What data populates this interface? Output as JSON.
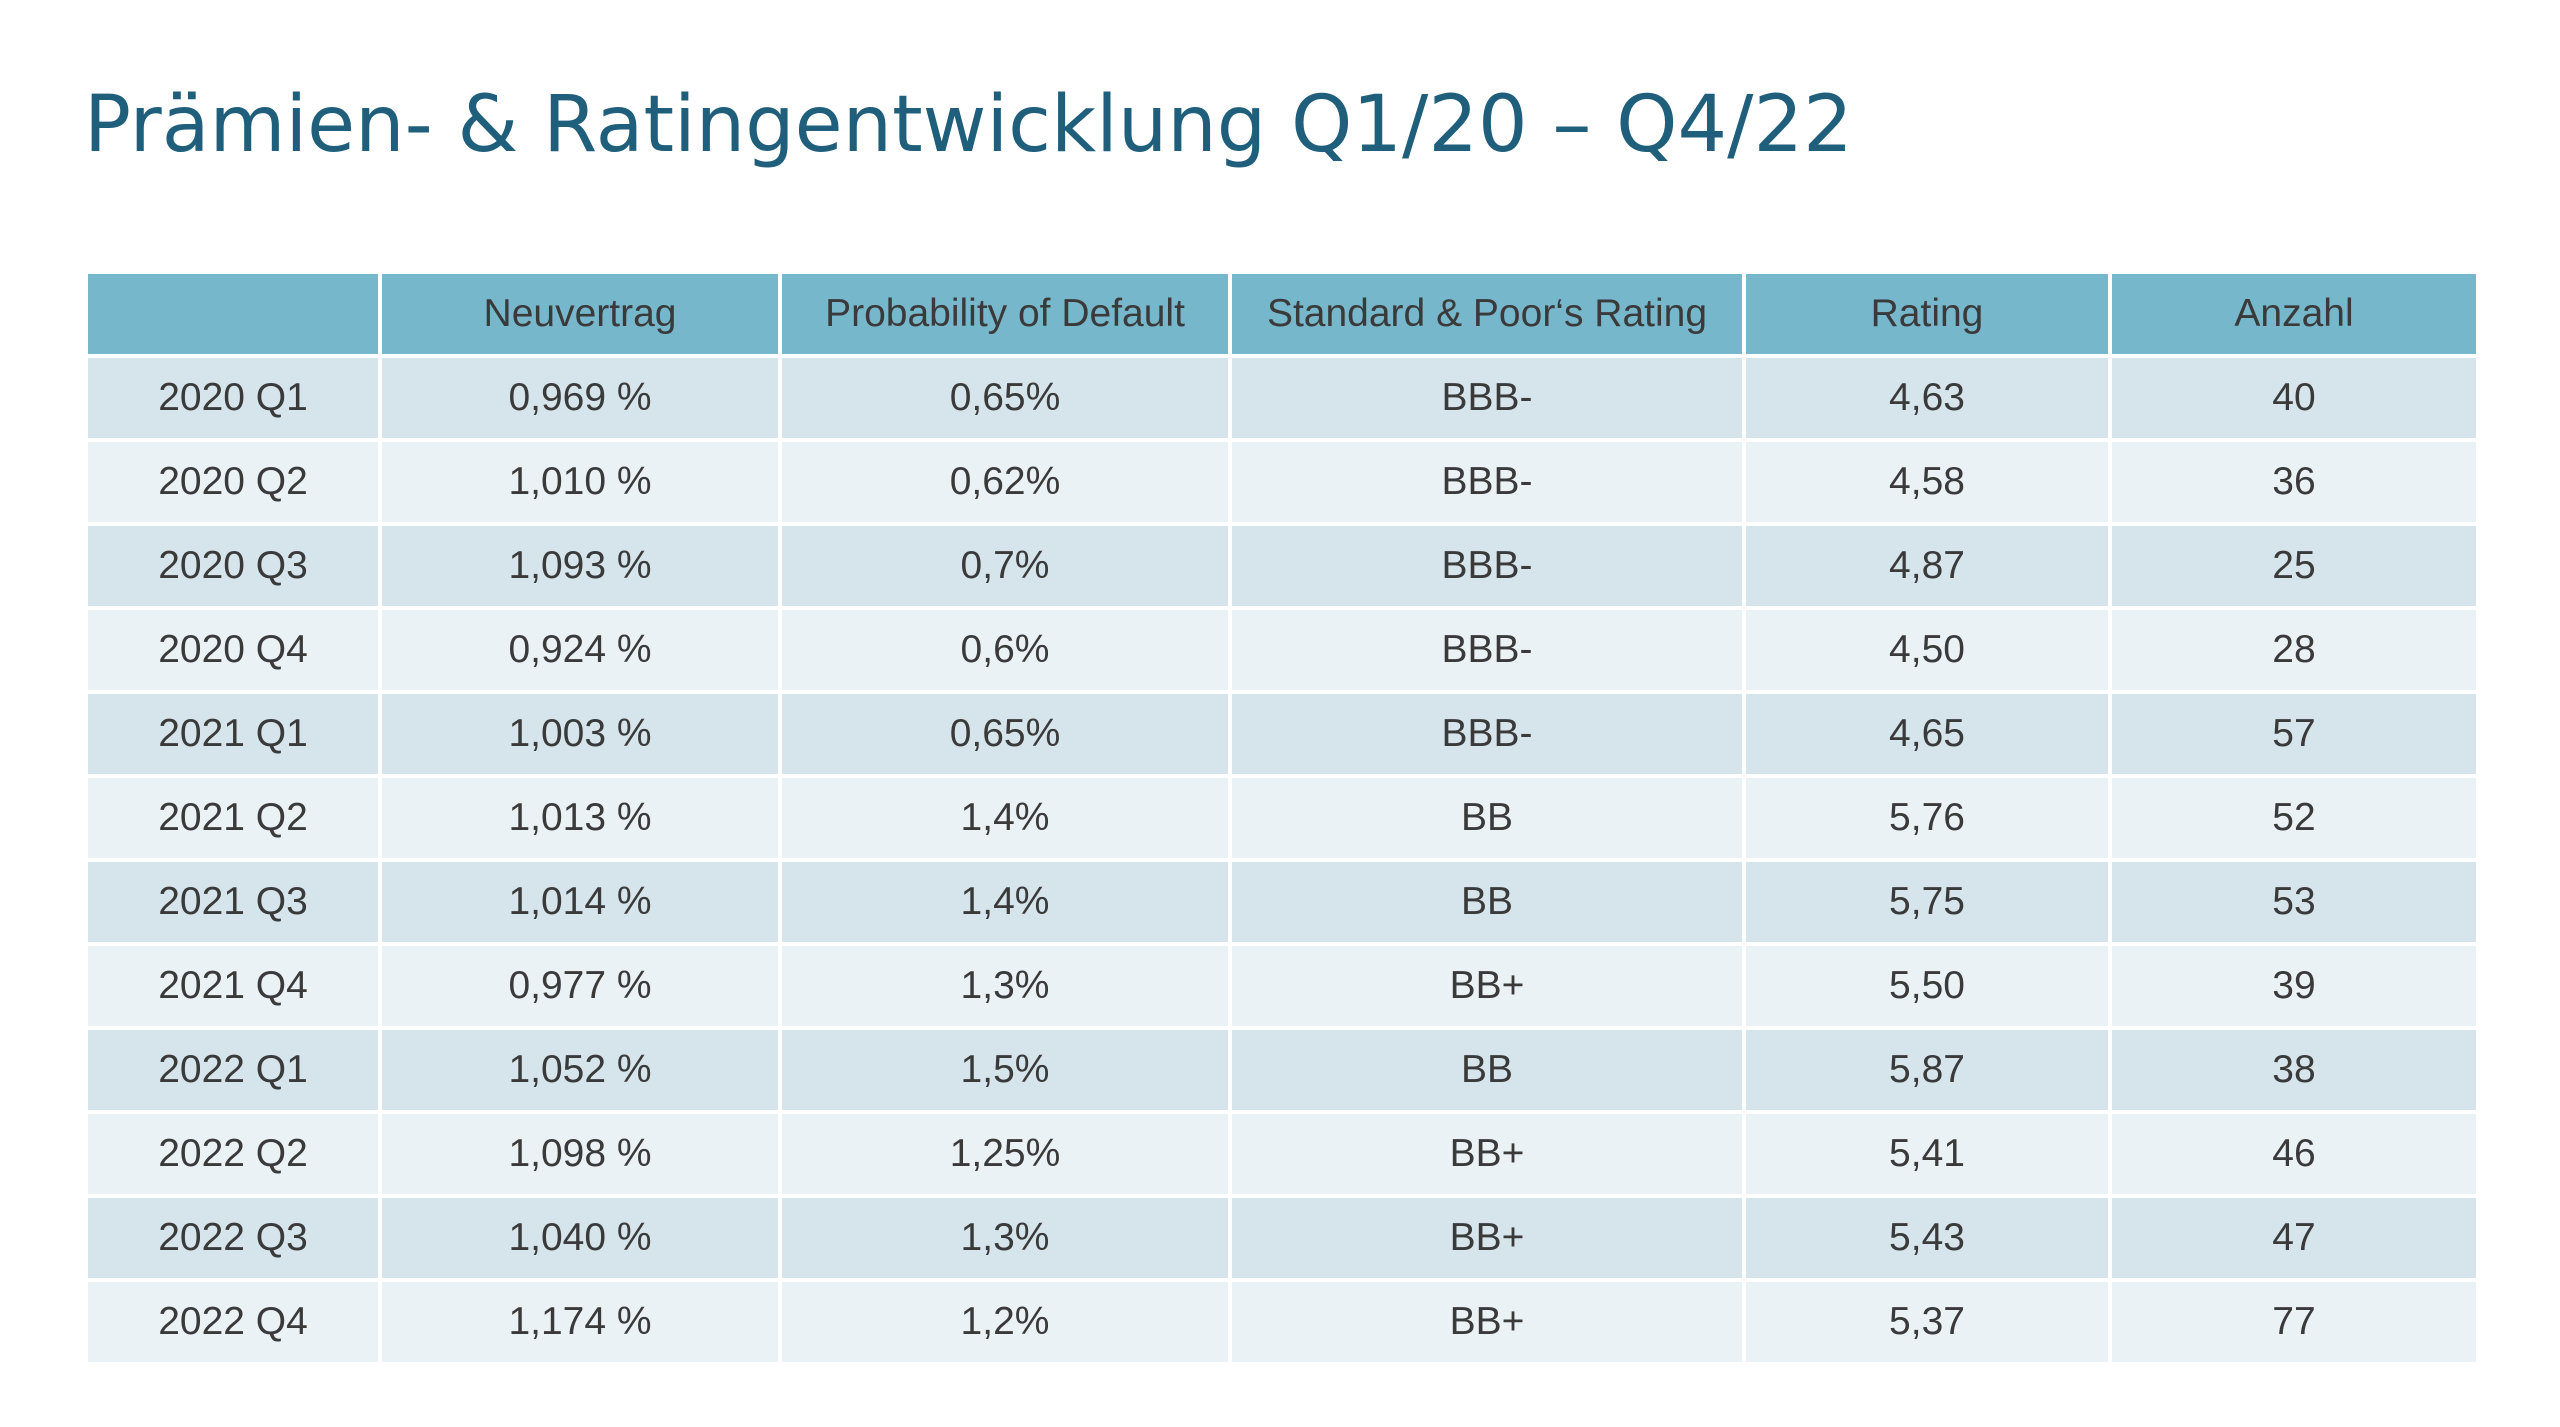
{
  "title": "Prämien- & Ratingentwicklung Q1/20 – Q4/22",
  "colors": {
    "title": "#1f5f7c",
    "header_bg": "#77b7cc",
    "row_dark": "#d6e5ec",
    "row_light": "#ebf2f6",
    "text": "#3a3a3a"
  },
  "table": {
    "headers": [
      "",
      "Neuvertrag",
      "Probability of Default",
      "Standard & Poor‘s Rating",
      "Rating",
      "Anzahl"
    ],
    "rows": [
      [
        "2020 Q1",
        "0,969 %",
        "0,65%",
        "BBB-",
        "4,63",
        "40"
      ],
      [
        "2020 Q2",
        "1,010 %",
        "0,62%",
        "BBB-",
        "4,58",
        "36"
      ],
      [
        "2020 Q3",
        "1,093 %",
        "0,7%",
        "BBB-",
        "4,87",
        "25"
      ],
      [
        "2020 Q4",
        "0,924 %",
        "0,6%",
        "BBB-",
        "4,50",
        "28"
      ],
      [
        "2021 Q1",
        "1,003 %",
        "0,65%",
        "BBB-",
        "4,65",
        "57"
      ],
      [
        "2021 Q2",
        "1,013 %",
        "1,4%",
        "BB",
        "5,76",
        "52"
      ],
      [
        "2021 Q3",
        "1,014 %",
        "1,4%",
        "BB",
        "5,75",
        "53"
      ],
      [
        "2021 Q4",
        "0,977 %",
        "1,3%",
        "BB+",
        "5,50",
        "39"
      ],
      [
        "2022 Q1",
        "1,052 %",
        "1,5%",
        "BB",
        "5,87",
        "38"
      ],
      [
        "2022 Q2",
        "1,098 %",
        "1,25%",
        "BB+",
        "5,41",
        "46"
      ],
      [
        "2022 Q3",
        "1,040 %",
        "1,3%",
        "BB+",
        "5,43",
        "47"
      ],
      [
        "2022 Q4",
        "1,174 %",
        "1,2%",
        "BB+",
        "5,37",
        "77"
      ]
    ]
  }
}
